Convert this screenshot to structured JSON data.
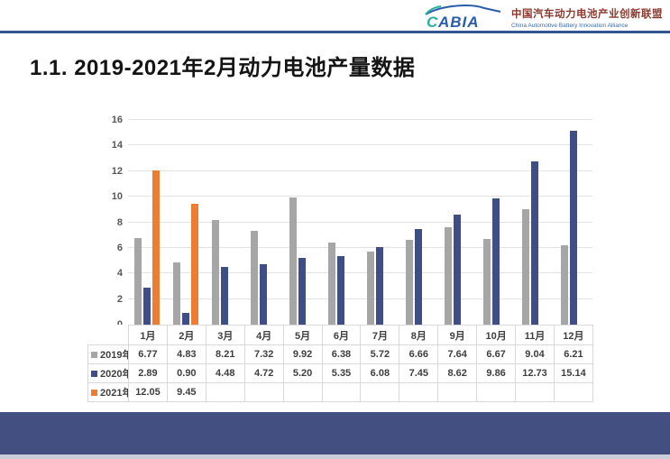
{
  "header": {
    "logo": {
      "brand_initial": "C",
      "brand_rest": "ABIA",
      "name_cn": "中国汽车动力电池产业创新联盟",
      "name_en": "China Automotive Battery Innovation Alliance",
      "brand_color": "#2a5caa",
      "accent_color": "#2bb0a0"
    },
    "rule_color": "#2f5597"
  },
  "title": "1.1. 2019-2021年2月动力电池产量数据",
  "chart_data": {
    "type": "bar",
    "title": "",
    "xlabel": "",
    "ylabel": "",
    "categories": [
      "1月",
      "2月",
      "3月",
      "4月",
      "5月",
      "6月",
      "7月",
      "8月",
      "9月",
      "10月",
      "11月",
      "12月"
    ],
    "series": [
      {
        "name": "2019年",
        "color": "#a6a6a6",
        "values": [
          6.77,
          4.83,
          8.21,
          7.32,
          9.92,
          6.38,
          5.72,
          6.66,
          7.64,
          6.67,
          9.04,
          6.21
        ]
      },
      {
        "name": "2020年",
        "color": "#3f4e87",
        "values": [
          2.89,
          0.9,
          4.48,
          4.72,
          5.2,
          5.35,
          6.08,
          7.45,
          8.62,
          9.86,
          12.73,
          15.14
        ]
      },
      {
        "name": "2021年",
        "color": "#ed7d31",
        "values": [
          12.05,
          9.45,
          null,
          null,
          null,
          null,
          null,
          null,
          null,
          null,
          null,
          null
        ]
      }
    ],
    "ylim": [
      0,
      16
    ],
    "ytick_step": 2,
    "grid": true,
    "legend_position": "table-left",
    "value_decimals": 2
  },
  "colors": {
    "gridline": "#e3e3e3",
    "table_border": "#d9d9d9",
    "footer": "#434f80",
    "axis_text": "#595959"
  }
}
